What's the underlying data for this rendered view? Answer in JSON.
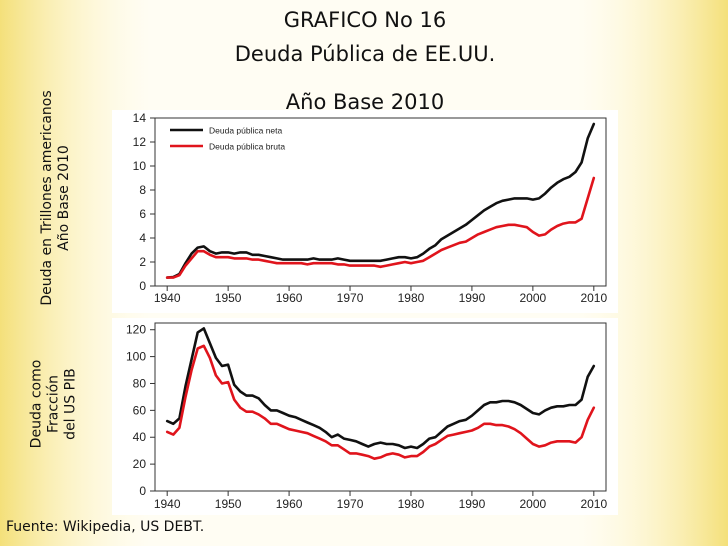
{
  "slide": {
    "title_lines": [
      "GRAFICO No 16",
      "Deuda Pública de EE.UU.",
      "Año Base 2010"
    ],
    "ylabel_top_lines": [
      "Deuda en Trillones americanos",
      "Año Base 2010"
    ],
    "ylabel_bottom_lines": [
      "Deuda como",
      "Fracción",
      "del US PIB"
    ],
    "source": "Fuente: Wikipedia, US DEBT.",
    "colors": {
      "bg_yellow": "#f6e79a",
      "net": "#111111",
      "gross": "#e0141c"
    }
  },
  "chart_data": [
    {
      "type": "line",
      "title": "",
      "xlabel": "",
      "ylabel": "Deuda en Trillones americanos Año Base 2010",
      "xlim": [
        1938,
        2012
      ],
      "ylim": [
        0,
        14
      ],
      "xticks": [
        "1940",
        "1950",
        "1960",
        "1970",
        "1980",
        "1990",
        "2000",
        "2010"
      ],
      "yticks": [
        "0",
        "2",
        "4",
        "6",
        "8",
        "10",
        "12",
        "14"
      ],
      "legend_position": "top-left",
      "grid": false,
      "x": [
        1940,
        1941,
        1942,
        1943,
        1944,
        1945,
        1946,
        1947,
        1948,
        1949,
        1950,
        1951,
        1952,
        1953,
        1954,
        1955,
        1956,
        1957,
        1958,
        1959,
        1960,
        1961,
        1962,
        1963,
        1964,
        1965,
        1966,
        1967,
        1968,
        1969,
        1970,
        1971,
        1972,
        1973,
        1974,
        1975,
        1976,
        1977,
        1978,
        1979,
        1980,
        1981,
        1982,
        1983,
        1984,
        1985,
        1986,
        1987,
        1988,
        1989,
        1990,
        1991,
        1992,
        1993,
        1994,
        1995,
        1996,
        1997,
        1998,
        1999,
        2000,
        2001,
        2002,
        2003,
        2004,
        2005,
        2006,
        2007,
        2008,
        2009,
        2010
      ],
      "series": [
        {
          "name": "Deuda pública neta",
          "values": [
            0.7,
            0.75,
            1.0,
            1.9,
            2.7,
            3.2,
            3.3,
            2.9,
            2.7,
            2.8,
            2.8,
            2.7,
            2.8,
            2.8,
            2.6,
            2.6,
            2.5,
            2.4,
            2.3,
            2.2,
            2.2,
            2.2,
            2.2,
            2.2,
            2.3,
            2.2,
            2.2,
            2.2,
            2.3,
            2.2,
            2.1,
            2.1,
            2.1,
            2.1,
            2.1,
            2.1,
            2.2,
            2.3,
            2.4,
            2.4,
            2.3,
            2.4,
            2.7,
            3.1,
            3.4,
            3.9,
            4.2,
            4.5,
            4.8,
            5.1,
            5.5,
            5.9,
            6.3,
            6.6,
            6.9,
            7.1,
            7.2,
            7.3,
            7.3,
            7.3,
            7.2,
            7.3,
            7.7,
            8.2,
            8.6,
            8.9,
            9.1,
            9.5,
            10.3,
            12.3,
            13.5
          ]
        },
        {
          "name": "Deuda pública bruta",
          "values": [
            0.7,
            0.7,
            0.9,
            1.7,
            2.3,
            2.9,
            2.9,
            2.6,
            2.4,
            2.4,
            2.4,
            2.3,
            2.3,
            2.3,
            2.2,
            2.2,
            2.1,
            2.0,
            1.9,
            1.9,
            1.9,
            1.9,
            1.9,
            1.8,
            1.9,
            1.9,
            1.9,
            1.9,
            1.8,
            1.8,
            1.7,
            1.7,
            1.7,
            1.7,
            1.7,
            1.6,
            1.7,
            1.8,
            1.9,
            2.0,
            1.9,
            2.0,
            2.1,
            2.4,
            2.7,
            3.0,
            3.2,
            3.4,
            3.6,
            3.7,
            4.0,
            4.3,
            4.5,
            4.7,
            4.9,
            5.0,
            5.1,
            5.1,
            5.0,
            4.9,
            4.5,
            4.2,
            4.3,
            4.7,
            5.0,
            5.2,
            5.3,
            5.3,
            5.6,
            7.3,
            9.0
          ]
        }
      ]
    },
    {
      "type": "line",
      "title": "",
      "xlabel": "",
      "ylabel": "Deuda como Fracción del US PIB",
      "xlim": [
        1938,
        2012
      ],
      "ylim": [
        0,
        125
      ],
      "xticks": [
        "1940",
        "1950",
        "1960",
        "1970",
        "1980",
        "1990",
        "2000",
        "2010"
      ],
      "yticks": [
        "0",
        "20",
        "40",
        "60",
        "80",
        "100",
        "120"
      ],
      "grid": false,
      "x": [
        1940,
        1941,
        1942,
        1943,
        1944,
        1945,
        1946,
        1947,
        1948,
        1949,
        1950,
        1951,
        1952,
        1953,
        1954,
        1955,
        1956,
        1957,
        1958,
        1959,
        1960,
        1961,
        1962,
        1963,
        1964,
        1965,
        1966,
        1967,
        1968,
        1969,
        1970,
        1971,
        1972,
        1973,
        1974,
        1975,
        1976,
        1977,
        1978,
        1979,
        1980,
        1981,
        1982,
        1983,
        1984,
        1985,
        1986,
        1987,
        1988,
        1989,
        1990,
        1991,
        1992,
        1993,
        1994,
        1995,
        1996,
        1997,
        1998,
        1999,
        2000,
        2001,
        2002,
        2003,
        2004,
        2005,
        2006,
        2007,
        2008,
        2009,
        2010
      ],
      "series": [
        {
          "values": [
            52,
            50,
            54,
            78,
            98,
            118,
            121,
            110,
            99,
            93,
            94,
            79,
            74,
            71,
            71,
            69,
            64,
            60,
            60,
            58,
            56,
            55,
            53,
            51,
            49,
            47,
            44,
            40,
            42,
            39,
            38,
            37,
            35,
            33,
            35,
            36,
            35,
            35,
            34,
            32,
            33,
            32,
            35,
            39,
            40,
            44,
            48,
            50,
            52,
            53,
            56,
            60,
            64,
            66,
            66,
            67,
            67,
            66,
            64,
            61,
            58,
            57,
            60,
            62,
            63,
            63,
            64,
            64,
            68,
            85,
            93
          ]
        },
        {
          "values": [
            44,
            42,
            47,
            70,
            90,
            106,
            108,
            99,
            86,
            80,
            81,
            68,
            62,
            59,
            59,
            57,
            54,
            50,
            50,
            48,
            46,
            45,
            44,
            43,
            41,
            39,
            37,
            34,
            34,
            31,
            28,
            28,
            27,
            26,
            24,
            25,
            27,
            28,
            27,
            25,
            26,
            26,
            29,
            33,
            35,
            38,
            41,
            42,
            43,
            44,
            45,
            47,
            50,
            50,
            49,
            49,
            48,
            46,
            43,
            39,
            35,
            33,
            34,
            36,
            37,
            37,
            37,
            36,
            40,
            53,
            62
          ]
        }
      ]
    }
  ]
}
